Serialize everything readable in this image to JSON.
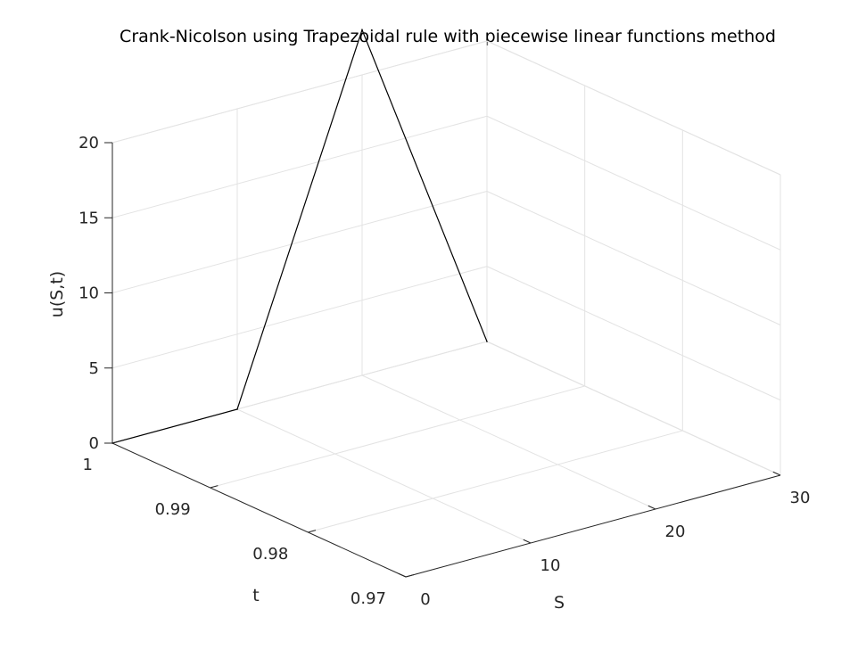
{
  "chart_data": {
    "type": "line3d",
    "title": "Crank-Nicolson using Trapezoidal rule with piecewise linear functions method",
    "xlabel": "S",
    "ylabel": "t",
    "zlabel": "u(S,t)",
    "xlim": [
      0,
      30
    ],
    "ylim": [
      0.97,
      1
    ],
    "zlim": [
      0,
      20
    ],
    "x_ticks": [
      "0",
      "10",
      "20",
      "30"
    ],
    "y_ticks": [
      "0.97",
      "0.98",
      "0.99",
      "1"
    ],
    "z_ticks": [
      "0",
      "5",
      "10",
      "15",
      "20"
    ],
    "grid": true,
    "series": [
      {
        "color": "#000000",
        "points": [
          {
            "S": 0,
            "t": 1,
            "u": 0
          },
          {
            "S": 10,
            "t": 1,
            "u": 0
          },
          {
            "S": 20,
            "t": 1,
            "u": 23
          },
          {
            "S": 30,
            "t": 1,
            "u": 0
          }
        ]
      }
    ]
  }
}
